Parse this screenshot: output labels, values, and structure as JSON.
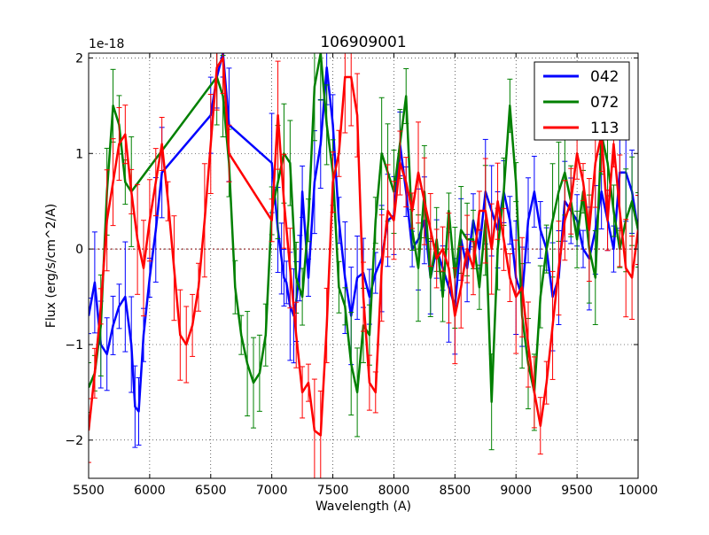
{
  "chart_data": {
    "type": "line",
    "title": "106909001",
    "xlabel": "Wavelength (A)",
    "ylabel": "Flux (erg/s/cm^2/A)",
    "offset_label": "1e-18",
    "xlim": [
      5500,
      10000
    ],
    "ylim": [
      -2.4,
      2.05
    ],
    "xticks": [
      5500,
      6000,
      6500,
      7000,
      7500,
      8000,
      8500,
      9000,
      9500,
      10000
    ],
    "xtick_labels": [
      "5500",
      "6000",
      "6500",
      "7000",
      "7500",
      "8000",
      "8500",
      "9000",
      "9500",
      "10000"
    ],
    "yticks": [
      -2,
      -1,
      0,
      1,
      2
    ],
    "ytick_labels": [
      "−2",
      "−1",
      "0",
      "1",
      "2"
    ],
    "grid": true,
    "legend_position": "top-right",
    "zero_line": {
      "y": 0,
      "style": "dotted",
      "color": "#800000"
    },
    "series": [
      {
        "name": "042",
        "color": "#0000ff",
        "x": [
          5500,
          5550,
          5600,
          5650,
          5700,
          5750,
          5800,
          5850,
          5880,
          5910,
          5950,
          6000,
          6050,
          6100,
          6500,
          6550,
          6600,
          6650,
          7000,
          7050,
          7080,
          7100,
          7120,
          7150,
          7180,
          7200,
          7230,
          7250,
          7300,
          7350,
          7400,
          7450,
          7500,
          7550,
          7600,
          7650,
          7700,
          7750,
          7800,
          7850,
          7900,
          7950,
          8000,
          8050,
          8100,
          8150,
          8200,
          8250,
          8300,
          8350,
          8400,
          8450,
          8500,
          8550,
          8600,
          8650,
          8700,
          8750,
          8800,
          8850,
          8900,
          8950,
          9000,
          9050,
          9100,
          9150,
          9200,
          9250,
          9300,
          9350,
          9400,
          9450,
          9500,
          9550,
          9600,
          9650,
          9700,
          9750,
          9800,
          9850,
          9900,
          9950,
          10000
        ],
        "values": [
          -0.7,
          -0.35,
          -1.0,
          -1.1,
          -0.8,
          -0.6,
          -0.5,
          -1.0,
          -1.65,
          -1.7,
          -0.9,
          -0.3,
          0.2,
          0.8,
          1.4,
          1.8,
          2.05,
          1.3,
          0.9,
          0.2,
          -0.1,
          -0.3,
          -0.35,
          -0.6,
          -0.7,
          -0.55,
          -0.2,
          0.6,
          -0.3,
          0.7,
          1.1,
          1.9,
          1.3,
          0.3,
          -0.3,
          -0.7,
          -0.3,
          -0.25,
          -0.5,
          -0.25,
          -0.1,
          0.3,
          0.35,
          1.1,
          0.6,
          0.0,
          0.1,
          0.3,
          -0.3,
          0.0,
          -0.2,
          -0.4,
          -0.6,
          0.1,
          -0.2,
          0.3,
          0.0,
          0.6,
          0.4,
          0.2,
          0.6,
          0.3,
          -0.3,
          -0.5,
          0.3,
          0.6,
          0.2,
          0.0,
          -0.5,
          -0.3,
          0.5,
          0.4,
          0.3,
          0.0,
          -0.1,
          0.2,
          0.6,
          0.3,
          0.0,
          0.8,
          0.8,
          0.6,
          0.2
        ]
      },
      {
        "name": "072",
        "color": "#008000",
        "x": [
          5500,
          5550,
          5600,
          5650,
          5700,
          5750,
          5800,
          5850,
          6550,
          6600,
          6650,
          6700,
          6750,
          6800,
          6850,
          6900,
          6950,
          7000,
          7050,
          7100,
          7150,
          7200,
          7250,
          7300,
          7350,
          7400,
          7450,
          7500,
          7550,
          7600,
          7650,
          7700,
          7750,
          7800,
          7850,
          7900,
          7950,
          8000,
          8050,
          8100,
          8150,
          8200,
          8250,
          8300,
          8350,
          8400,
          8450,
          8500,
          8550,
          8600,
          8650,
          8700,
          8750,
          8800,
          8850,
          8900,
          8950,
          9000,
          9050,
          9100,
          9150,
          9200,
          9250,
          9300,
          9350,
          9400,
          9450,
          9500,
          9550,
          9600,
          9650,
          9700,
          9750,
          9800,
          9850,
          9900,
          9950,
          10000
        ],
        "values": [
          -1.45,
          -1.3,
          -0.8,
          0.6,
          1.5,
          1.3,
          0.7,
          0.6,
          1.8,
          1.6,
          0.9,
          -0.4,
          -0.9,
          -1.2,
          -1.4,
          -1.3,
          -0.9,
          0.4,
          0.7,
          1.0,
          0.9,
          -0.3,
          -0.5,
          0.3,
          1.7,
          2.05,
          1.3,
          0.8,
          -0.4,
          -0.6,
          -1.2,
          -1.5,
          -0.8,
          -0.9,
          0.3,
          1.0,
          0.8,
          0.6,
          1.1,
          1.6,
          0.2,
          -0.2,
          0.6,
          -0.3,
          0.1,
          -0.5,
          0.4,
          -0.3,
          0.2,
          0.1,
          0.1,
          -0.4,
          0.3,
          -1.6,
          0.0,
          0.6,
          1.5,
          0.7,
          -0.7,
          -1.2,
          -1.5,
          -0.5,
          0.0,
          0.3,
          0.6,
          0.8,
          0.5,
          0.1,
          0.6,
          0.0,
          -0.3,
          1.2,
          0.9,
          0.4,
          0.0,
          0.3,
          0.5,
          0.2
        ]
      },
      {
        "name": "113",
        "color": "#ff0000",
        "x": [
          5500,
          5550,
          5600,
          5650,
          5700,
          5750,
          5800,
          5850,
          5900,
          5950,
          6000,
          6050,
          6100,
          6150,
          6200,
          6250,
          6300,
          6350,
          6400,
          6450,
          6500,
          6550,
          6600,
          6650,
          7000,
          7050,
          7100,
          7150,
          7200,
          7250,
          7300,
          7350,
          7400,
          7450,
          7500,
          7550,
          7600,
          7650,
          7700,
          7750,
          7800,
          7850,
          7900,
          7950,
          8000,
          8050,
          8100,
          8150,
          8200,
          8250,
          8300,
          8350,
          8400,
          8450,
          8500,
          8550,
          8600,
          8650,
          8700,
          8750,
          8800,
          8850,
          8900,
          8950,
          9000,
          9050,
          9100,
          9150,
          9200,
          9250,
          9300,
          9350,
          9400,
          9450,
          9500,
          9550,
          9600,
          9650,
          9700,
          9750,
          9800,
          9850,
          9900,
          9950,
          10000
        ],
        "values": [
          -1.9,
          -1.3,
          -0.6,
          0.3,
          0.7,
          1.1,
          1.2,
          0.6,
          0.1,
          -0.2,
          0.3,
          0.7,
          1.1,
          0.5,
          -0.2,
          -0.9,
          -1.0,
          -0.8,
          -0.4,
          0.3,
          1.1,
          1.9,
          2.0,
          1.0,
          0.3,
          1.4,
          0.5,
          -0.2,
          -0.9,
          -1.5,
          -1.4,
          -1.9,
          -1.95,
          -0.8,
          0.7,
          1.0,
          1.8,
          1.8,
          1.4,
          -0.5,
          -1.4,
          -1.5,
          -0.2,
          0.4,
          0.3,
          0.9,
          0.7,
          0.4,
          0.8,
          0.5,
          0.2,
          -0.1,
          0.0,
          -0.2,
          -0.7,
          -0.4,
          0.0,
          -0.2,
          0.4,
          0.4,
          0.0,
          0.5,
          0.1,
          -0.3,
          -0.5,
          -0.4,
          -1.0,
          -1.5,
          -1.85,
          -1.4,
          -0.8,
          -0.2,
          0.3,
          0.5,
          1.0,
          0.7,
          0.2,
          0.9,
          1.2,
          0.3,
          1.1,
          0.4,
          -0.2,
          -0.3,
          0.2
        ]
      }
    ]
  }
}
